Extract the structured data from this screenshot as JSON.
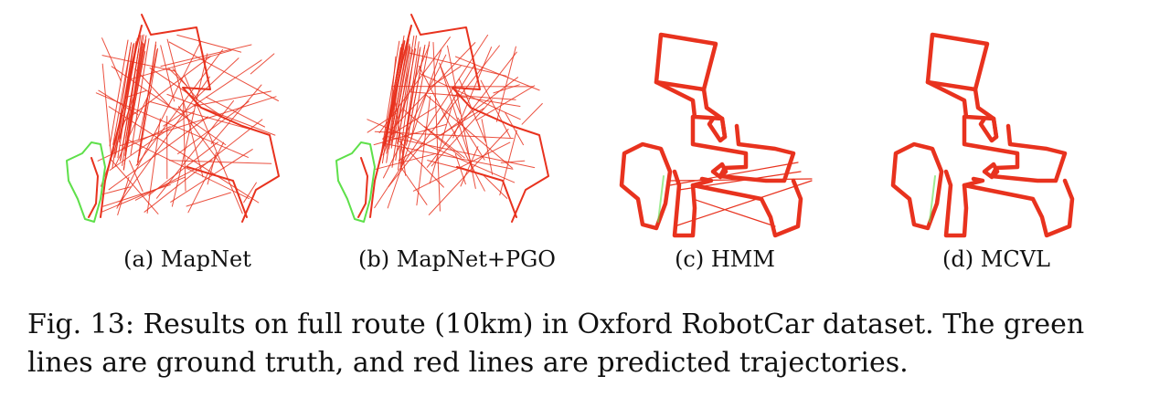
{
  "panels": [
    {
      "id": "a",
      "caption": "(a) MapNet"
    },
    {
      "id": "b",
      "caption": "(b) MapNet+PGO"
    },
    {
      "id": "c",
      "caption": "(c) HMM"
    },
    {
      "id": "d",
      "caption": "(d) MCVL"
    }
  ],
  "figure_caption": {
    "line1": "Fig. 13: Results on full route (10km) in Oxford RobotCar dataset. The green",
    "line2": "lines are ground truth, and red lines are predicted trajectories."
  },
  "colors": {
    "ground_truth": "#5ee04a",
    "prediction": "#e8321e"
  }
}
